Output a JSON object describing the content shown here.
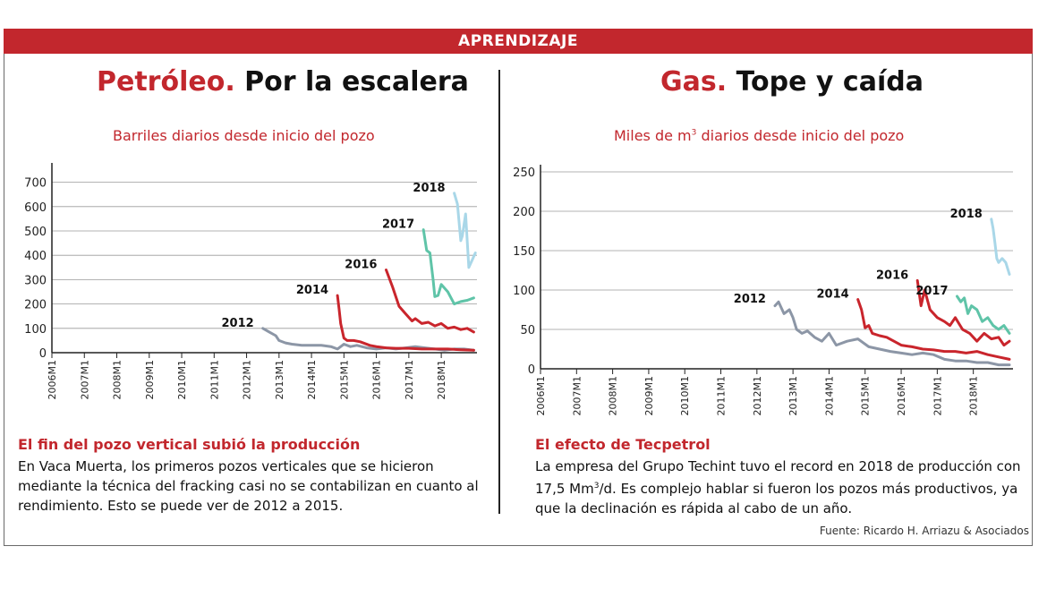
{
  "banner": "APRENDIZAJE",
  "left": {
    "title_red": "Petróleo.",
    "title_black": " Por la escalera",
    "subtitle": "Barriles diarios desde inicio del pozo",
    "note_head": "El fin del pozo vertical subió la producción",
    "note_body": "En Vaca Muerta, los primeros pozos verticales que se hicieron mediante la técnica del fracking casi no se contabilizan en cuanto al rendimiento.  Esto se puede ver de 2012 a 2015."
  },
  "right": {
    "title_red": "Gas.",
    "title_black": " Tope y caída",
    "subtitle_pre": "Miles de m",
    "subtitle_sup": "3",
    "subtitle_post": " diarios desde inicio del pozo",
    "note_head": "El efecto de Tecpetrol",
    "note_body_1": "La empresa del Grupo Techint tuvo el record en 2018 de producción con 17,5 Mm",
    "note_body_sup": "3",
    "note_body_2": "/d. Es complejo hablar si fueron los pozos más productivos, ya que la declinación es rápida al cabo de un año."
  },
  "source": "Fuente: Ricardo H. Arriazu & Asociados",
  "colors": {
    "accent": "#c2272d",
    "s2012": "#8c96a6",
    "s2014": "#c9252c",
    "s2016": "#c9252c",
    "s2017": "#5fc4a8",
    "s2018": "#a9d7e8"
  },
  "chart_data": [
    {
      "type": "line",
      "title": "Barriles diarios desde inicio del pozo",
      "xlabel": "",
      "ylabel": "",
      "ylim": [
        0,
        750
      ],
      "yticks": [
        0,
        100,
        200,
        300,
        400,
        500,
        600,
        700
      ],
      "xlim": [
        2006,
        2019.1
      ],
      "xticks": [
        "2006M1",
        "2007M1",
        "2008M1",
        "2009M1",
        "2010M1",
        "2011M1",
        "2012M1",
        "2013M1",
        "2014M1",
        "2015M1",
        "2016M1",
        "2017M1",
        "2018M1"
      ],
      "series": [
        {
          "name": "2012",
          "color_key": "s2012",
          "label_at": [
            2012.5,
            100
          ],
          "x": [
            2012.5,
            2012.7,
            2012.9,
            2013.0,
            2013.2,
            2013.4,
            2013.7,
            2014.0,
            2014.3,
            2014.6,
            2014.8,
            2015.0,
            2015.2,
            2015.4,
            2015.7,
            2016.0,
            2016.3,
            2016.6,
            2016.9,
            2017.2,
            2017.5,
            2017.8,
            2018.1,
            2018.4,
            2018.7,
            2019.0
          ],
          "values": [
            100,
            85,
            70,
            50,
            40,
            35,
            30,
            30,
            30,
            25,
            15,
            35,
            25,
            30,
            20,
            15,
            20,
            15,
            20,
            25,
            20,
            15,
            10,
            15,
            15,
            10
          ]
        },
        {
          "name": "2014",
          "color_key": "s2014",
          "label_at": [
            2014.8,
            235
          ],
          "x": [
            2014.8,
            2014.85,
            2014.9,
            2015.0,
            2015.1,
            2015.3,
            2015.5,
            2015.8,
            2016.0,
            2016.3,
            2016.6,
            2017.0,
            2017.4,
            2017.8,
            2018.2,
            2018.6,
            2019.0
          ],
          "values": [
            235,
            180,
            120,
            60,
            50,
            50,
            45,
            30,
            25,
            20,
            18,
            18,
            15,
            15,
            15,
            12,
            10
          ]
        },
        {
          "name": "2016",
          "color_key": "s2016",
          "label_at": [
            2016.3,
            340
          ],
          "x": [
            2016.3,
            2016.5,
            2016.7,
            2016.9,
            2017.1,
            2017.2,
            2017.4,
            2017.6,
            2017.8,
            2018.0,
            2018.2,
            2018.4,
            2018.6,
            2018.8,
            2019.0
          ],
          "values": [
            340,
            270,
            190,
            160,
            130,
            140,
            120,
            125,
            110,
            120,
            100,
            105,
            95,
            100,
            85
          ]
        },
        {
          "name": "2017",
          "color_key": "s2017",
          "label_at": [
            2017.45,
            505
          ],
          "x": [
            2017.45,
            2017.55,
            2017.65,
            2017.75,
            2017.8,
            2017.9,
            2018.0,
            2018.2,
            2018.4,
            2018.6,
            2018.8,
            2019.0
          ],
          "values": [
            505,
            420,
            410,
            300,
            230,
            235,
            280,
            250,
            200,
            210,
            215,
            225
          ]
        },
        {
          "name": "2018",
          "color_key": "s2018",
          "label_at": [
            2018.4,
            655
          ],
          "x": [
            2018.4,
            2018.5,
            2018.6,
            2018.65,
            2018.75,
            2018.85,
            2018.95,
            2019.05
          ],
          "values": [
            655,
            610,
            460,
            480,
            570,
            350,
            380,
            410
          ]
        }
      ]
    },
    {
      "type": "line",
      "title": "Miles de m3 diarios desde inicio del pozo",
      "xlabel": "",
      "ylabel": "",
      "ylim": [
        0,
        250
      ],
      "yticks": [
        0,
        50,
        100,
        150,
        200,
        250
      ],
      "xlim": [
        2006,
        2019.1
      ],
      "xticks": [
        "2006M1",
        "2007M1",
        "2008M1",
        "2009M1",
        "2010M1",
        "2011M1",
        "2012M1",
        "2013M1",
        "2014M1",
        "2015M1",
        "2016M1",
        "2017M1",
        "2018M1"
      ],
      "series": [
        {
          "name": "2012",
          "color_key": "s2012",
          "label_at": [
            2012.5,
            82
          ],
          "x": [
            2012.5,
            2012.6,
            2012.75,
            2012.9,
            2013.0,
            2013.1,
            2013.25,
            2013.4,
            2013.6,
            2013.8,
            2014.0,
            2014.2,
            2014.5,
            2014.8,
            2015.1,
            2015.4,
            2015.7,
            2016.0,
            2016.3,
            2016.6,
            2016.9,
            2017.2,
            2017.5,
            2017.8,
            2018.1,
            2018.4,
            2018.7,
            2019.0
          ],
          "values": [
            80,
            85,
            70,
            75,
            65,
            50,
            45,
            48,
            40,
            35,
            45,
            30,
            35,
            38,
            28,
            25,
            22,
            20,
            18,
            20,
            18,
            12,
            10,
            10,
            8,
            8,
            5,
            5
          ]
        },
        {
          "name": "2014",
          "color_key": "s2014",
          "label_at": [
            2014.8,
            88
          ],
          "x": [
            2014.8,
            2014.9,
            2015.0,
            2015.1,
            2015.2,
            2015.4,
            2015.6,
            2015.8,
            2016.0,
            2016.3,
            2016.6,
            2016.9,
            2017.2,
            2017.5,
            2017.8,
            2018.1,
            2018.4,
            2018.7,
            2019.0
          ],
          "values": [
            88,
            75,
            52,
            55,
            45,
            42,
            40,
            35,
            30,
            28,
            25,
            24,
            22,
            22,
            20,
            22,
            18,
            15,
            12
          ]
        },
        {
          "name": "2016",
          "color_key": "s2016",
          "label_at": [
            2016.45,
            112
          ],
          "x": [
            2016.45,
            2016.55,
            2016.65,
            2016.8,
            2017.0,
            2017.2,
            2017.35,
            2017.5,
            2017.7,
            2017.9,
            2018.1,
            2018.3,
            2018.5,
            2018.7,
            2018.85,
            2019.0
          ],
          "values": [
            112,
            80,
            100,
            75,
            65,
            60,
            55,
            65,
            50,
            45,
            35,
            45,
            38,
            40,
            30,
            35
          ]
        },
        {
          "name": "2017",
          "color_key": "s2017",
          "label_at": [
            2017.55,
            92
          ],
          "x": [
            2017.55,
            2017.65,
            2017.75,
            2017.85,
            2017.95,
            2018.1,
            2018.25,
            2018.4,
            2018.55,
            2018.7,
            2018.85,
            2019.0
          ],
          "values": [
            92,
            85,
            90,
            70,
            80,
            75,
            60,
            65,
            55,
            50,
            55,
            45
          ]
        },
        {
          "name": "2018",
          "color_key": "s2018",
          "label_at": [
            2018.5,
            190
          ],
          "x": [
            2018.5,
            2018.55,
            2018.6,
            2018.65,
            2018.7,
            2018.8,
            2018.9,
            2019.0
          ],
          "values": [
            190,
            178,
            160,
            140,
            135,
            140,
            135,
            120
          ]
        }
      ]
    }
  ]
}
